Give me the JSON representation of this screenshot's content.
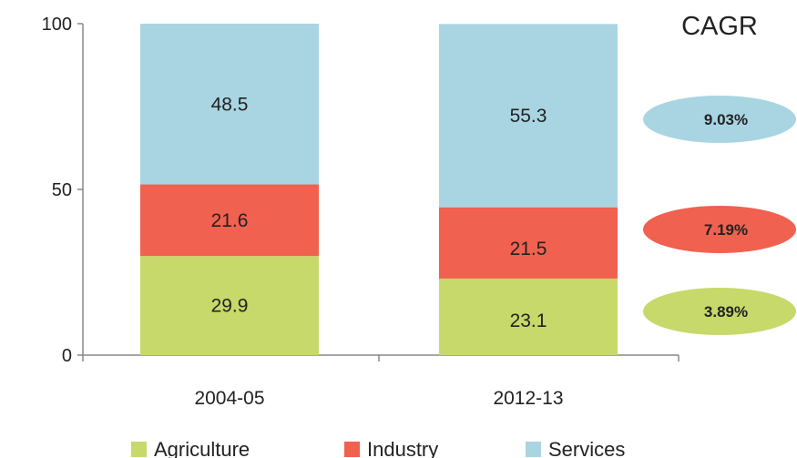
{
  "chart_data": {
    "type": "bar",
    "stacked": true,
    "categories": [
      "2004-05",
      "2012-13"
    ],
    "series": [
      {
        "name": "Agriculture",
        "color": "#c6d96a",
        "values": [
          29.9,
          23.1
        ],
        "labels": [
          "29.9",
          "23.1"
        ]
      },
      {
        "name": "Industry",
        "color": "#f0614f",
        "values": [
          21.6,
          21.5
        ],
        "labels": [
          "21.6",
          "21.5"
        ]
      },
      {
        "name": "Services",
        "color": "#a9d5e2",
        "values": [
          48.5,
          55.3
        ],
        "labels": [
          "48.5",
          "55.3"
        ]
      }
    ],
    "ylim": [
      0,
      100
    ],
    "yticks": [
      0,
      50,
      100
    ],
    "ytick_labels": [
      "0",
      "50",
      "100"
    ],
    "grid": false,
    "legend_position": "bottom",
    "cagr": {
      "title": "CAGR",
      "items": [
        {
          "series": "Services",
          "value": "9.03%",
          "color": "#a9d5e2"
        },
        {
          "series": "Industry",
          "value": "7.19%",
          "color": "#f0614f"
        },
        {
          "series": "Agriculture",
          "value": "3.89%",
          "color": "#c6d96a"
        }
      ]
    }
  }
}
